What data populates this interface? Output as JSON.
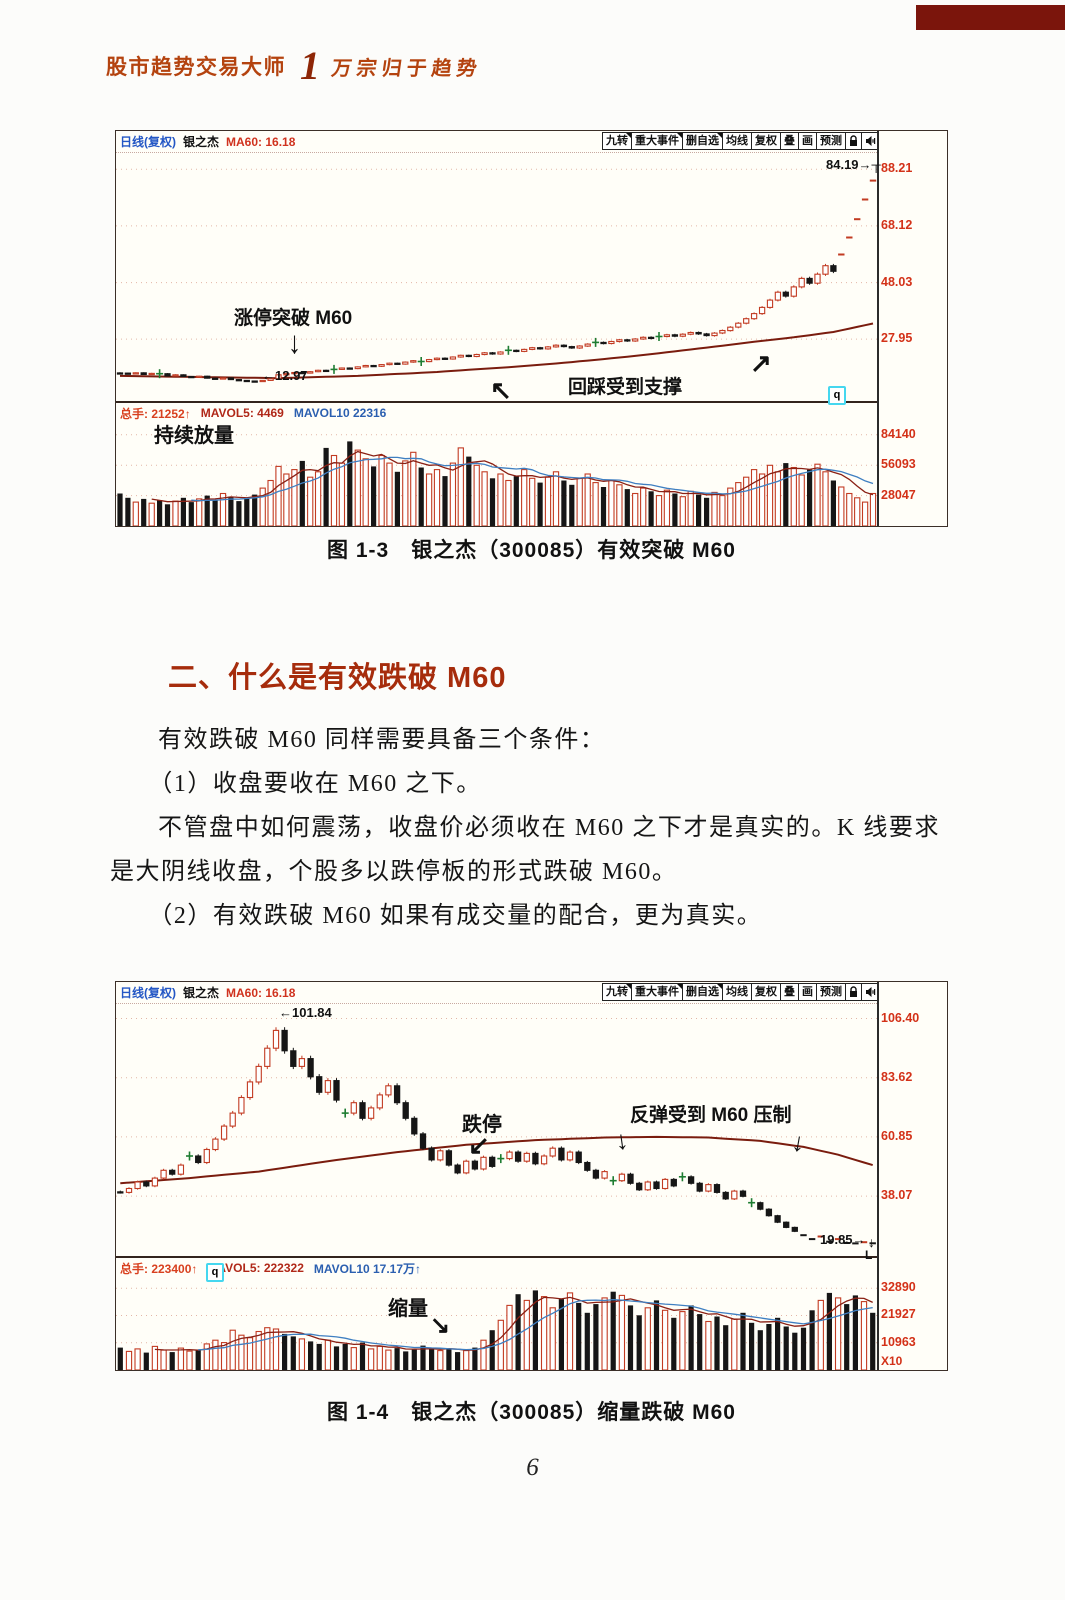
{
  "page": {
    "header_title": "股市趋势交易大师",
    "header_volume_no": "1",
    "header_subtitle": "万宗归于趋势",
    "page_number": "6"
  },
  "colors": {
    "candle_up": "#c23b22",
    "candle_down": "#161616",
    "doji_green": "#1e7d32",
    "m60_line": "#7a1c0e",
    "mavol5_line": "#8a2014",
    "mavol10_line": "#3f7fc1",
    "axis_label_red": "#d33118",
    "grid_dotted": "#e2b6a6",
    "heading_red": "#a62c0c",
    "header_band": "#b4430f",
    "top_bar_red": "#7b150c"
  },
  "chart_toolbar": {
    "items": [
      {
        "label": "九转",
        "notch": true
      },
      {
        "label": "重大事件",
        "notch": true
      },
      {
        "label": "删自选",
        "notch": true
      },
      {
        "label": "均线",
        "notch": false
      },
      {
        "label": "复权",
        "notch": false
      },
      {
        "label": "叠",
        "notch": false
      },
      {
        "label": "画",
        "notch": false
      },
      {
        "label": "预测",
        "notch": false
      }
    ]
  },
  "section": {
    "heading": "二、什么是有效跌破 M60",
    "paragraphs": [
      "有效跌破 M60 同样需要具备三个条件：",
      "（1）收盘要收在 M60 之下。",
      "不管盘中如何震荡，收盘价必须收在 M60 之下才是真实的。K 线要求是大阴线收盘，个股多以跌停板的形式跌破 M60。",
      "（2）有效跌破 M60 如果有成交量的配合，更为真实。"
    ]
  },
  "figure1": {
    "caption": "图 1-3　银之杰（300085）有效突破 M60",
    "header": {
      "period": "日线(复权)",
      "stock": "银之杰",
      "ma": "MA60: 16.18"
    },
    "price_axis": [
      "88.21",
      "68.12",
      "48.03",
      "27.95"
    ],
    "volume_axis": [
      "84140",
      "56093",
      "28047"
    ],
    "volume_header": [
      {
        "text": "总手: 21252↑",
        "color": "#d8401f"
      },
      {
        "text": "MAVOL5: 4469",
        "color": "#b02818"
      },
      {
        "text": "MAVOL10  22316",
        "color": "#2b5fb0"
      }
    ],
    "annotations": {
      "limit_up_text": "涨停突破 M60",
      "limit_up_arrow": "↓",
      "low_arrow": "←",
      "low_label": "12.97",
      "support_text": "回踩受到支撑",
      "support_arrow1": "↖",
      "support_arrow2": "↗",
      "high_label": "84.19",
      "high_marker": "→┬",
      "volume_note": "持续放量",
      "q_badge": "q"
    },
    "chart_data": {
      "type": "candlestick",
      "price": {
        "ylim": [
          6,
          94
        ],
        "gridlines": [
          88.21,
          68.12,
          48.03,
          27.95
        ],
        "dash_from": 91,
        "dojis": [
          5,
          27,
          38,
          49,
          60,
          68
        ],
        "m60_points": [
          [
            0,
            14.9
          ],
          [
            10,
            14.5
          ],
          [
            20,
            14.1
          ],
          [
            30,
            14.9
          ],
          [
            40,
            16.3
          ],
          [
            50,
            18.2
          ],
          [
            55,
            19.3
          ],
          [
            60,
            20.6
          ],
          [
            65,
            22.0
          ],
          [
            70,
            23.6
          ],
          [
            75,
            25.3
          ],
          [
            80,
            27.0
          ],
          [
            85,
            28.6
          ],
          [
            90,
            30.5
          ],
          [
            95,
            33.5
          ]
        ],
        "closes": [
          15.9,
          15.6,
          16.0,
          15.4,
          15.8,
          15.7,
          14.9,
          15.3,
          14.7,
          14.4,
          14.8,
          14.1,
          13.8,
          14.2,
          13.6,
          13.3,
          13.1,
          12.97,
          13.3,
          13.9,
          15.3,
          15.7,
          16.1,
          15.9,
          16.4,
          16.9,
          16.6,
          17.2,
          17.7,
          17.5,
          18.1,
          18.6,
          18.3,
          18.9,
          19.4,
          19.1,
          19.8,
          20.3,
          20.0,
          20.7,
          21.2,
          20.9,
          21.6,
          22.2,
          21.8,
          22.5,
          23.1,
          22.7,
          23.4,
          24.0,
          23.6,
          24.3,
          24.9,
          24.5,
          25.2,
          25.8,
          25.3,
          24.8,
          25.5,
          26.2,
          26.8,
          26.4,
          27.1,
          27.7,
          27.3,
          28.0,
          28.6,
          28.2,
          28.9,
          29.5,
          29.0,
          29.7,
          30.3,
          29.8,
          29.2,
          30.1,
          31.0,
          32.2,
          33.6,
          35.2,
          37.0,
          39.2,
          41.8,
          44.6,
          43.2,
          46.5,
          49.5,
          47.8,
          51.0,
          54.0,
          52.0,
          58.0,
          64.0,
          70.5,
          77.5,
          84.19
        ]
      },
      "volume": {
        "ylim": [
          0,
          95000
        ],
        "gridlines": [
          84140,
          56093,
          28047
        ],
        "values": [
          30000,
          26000,
          22000,
          25000,
          21000,
          24000,
          20000,
          23000,
          26000,
          22000,
          25000,
          28000,
          24000,
          30000,
          27000,
          23000,
          26000,
          29000,
          35000,
          42000,
          55000,
          48000,
          52000,
          60000,
          45000,
          50000,
          72000,
          65000,
          58000,
          78000,
          70000,
          62000,
          55000,
          65000,
          58000,
          50000,
          60000,
          68000,
          54000,
          48000,
          52000,
          46000,
          58000,
          72000,
          64000,
          56000,
          50000,
          44000,
          48000,
          42000,
          46000,
          52000,
          44000,
          40000,
          45000,
          50000,
          42000,
          38000,
          44000,
          48000,
          40000,
          36000,
          42000,
          38000,
          34000,
          30000,
          35000,
          32000,
          28000,
          33000,
          30000,
          27000,
          32000,
          29000,
          26000,
          31000,
          28000,
          35000,
          40000,
          45000,
          52000,
          48000,
          56000,
          50000,
          58000,
          54000,
          47000,
          52000,
          57000,
          50000,
          42000,
          36000,
          30000,
          26000,
          22000,
          30000
        ]
      }
    }
  },
  "figure2": {
    "caption": "图 1-4　银之杰（300085）缩量跌破 M60",
    "header": {
      "period": "日线(复权)",
      "stock": "银之杰",
      "ma": "MA60: 16.18"
    },
    "price_axis": [
      "106.40",
      "83.62",
      "60.85",
      "38.07"
    ],
    "volume_axis": [
      "32890",
      "21927",
      "10963"
    ],
    "volume_axis_unit": "X10",
    "volume_header": [
      {
        "text": "总手: 223400↑",
        "color": "#d8401f"
      },
      {
        "text": "MAVOL5: 222322",
        "color": "#b02818"
      },
      {
        "text": "MAVOL10  17.17万↑",
        "color": "#2b5fb0"
      }
    ],
    "annotations": {
      "peak_arrow": "←",
      "peak_label": "101.84",
      "limit_down_text": "跌停",
      "limit_down_arrow": "↙",
      "rebound_text": "反弹受到 M60 压制",
      "rebound_arrow1": "↓",
      "rebound_arrow2": "↓",
      "low_label": "19.85",
      "low_marker": "→",
      "low_arrow": "↓",
      "low_flag": "L",
      "shrink_text": "缩量",
      "shrink_arrow": "↘",
      "q_badge": "q"
    },
    "chart_data": {
      "type": "candlestick",
      "price": {
        "ylim": [
          15,
          112
        ],
        "gridlines": [
          106.4,
          83.62,
          60.85,
          38.07
        ],
        "dash_from": 79,
        "dojis": [
          8,
          26,
          44,
          57,
          65,
          73
        ],
        "m60_points": [
          [
            0,
            43.0
          ],
          [
            8,
            45.0
          ],
          [
            16,
            47.5
          ],
          [
            24,
            51.5
          ],
          [
            32,
            55.0
          ],
          [
            40,
            57.8
          ],
          [
            48,
            59.6
          ],
          [
            56,
            60.6
          ],
          [
            62,
            60.85
          ],
          [
            68,
            60.6
          ],
          [
            74,
            59.3
          ],
          [
            79,
            57.0
          ],
          [
            83,
            54.0
          ],
          [
            87,
            50.0
          ]
        ],
        "closes": [
          39.5,
          41.0,
          43.5,
          42.0,
          45.0,
          48.0,
          46.5,
          50.0,
          53.5,
          51.0,
          56.0,
          60.0,
          65.0,
          70.0,
          76.0,
          82.0,
          88.0,
          95.0,
          101.84,
          94.0,
          88.0,
          91.0,
          84.0,
          78.0,
          82.5,
          75.0,
          70.0,
          74.0,
          68.0,
          72.0,
          77.0,
          80.5,
          74.0,
          68.0,
          62.0,
          56.5,
          52.0,
          55.5,
          50.0,
          47.0,
          51.5,
          48.5,
          53.0,
          49.5,
          52.5,
          55.0,
          51.5,
          54.5,
          50.5,
          53.5,
          56.5,
          52.0,
          55.0,
          51.0,
          48.0,
          45.0,
          47.5,
          44.0,
          46.5,
          43.0,
          40.5,
          43.5,
          41.0,
          44.5,
          42.0,
          45.5,
          43.0,
          40.0,
          42.5,
          39.5,
          37.0,
          40.0,
          38.0,
          35.5,
          33.0,
          30.5,
          28.0,
          26.0,
          24.5,
          23.0,
          21.5,
          22.5,
          20.5,
          21.5,
          20.0,
          19.85,
          20.3,
          19.9
        ]
      },
      "volume": {
        "ylim": [
          0,
          37000
        ],
        "gridlines": [
          32890,
          21927,
          10963
        ],
        "values": [
          9000,
          7500,
          8500,
          7000,
          9500,
          8000,
          7200,
          8800,
          7600,
          8200,
          10500,
          12000,
          11000,
          16000,
          14000,
          13000,
          15500,
          17000,
          16500,
          14500,
          13500,
          12500,
          11500,
          10500,
          12000,
          9500,
          10500,
          9000,
          11000,
          8500,
          9500,
          8000,
          8800,
          7500,
          8200,
          9800,
          8600,
          7800,
          8400,
          7200,
          7800,
          9000,
          12000,
          16000,
          20000,
          26000,
          30500,
          28000,
          32000,
          29500,
          25000,
          28500,
          31000,
          27000,
          23000,
          26500,
          29000,
          31500,
          30000,
          26000,
          22000,
          25000,
          28000,
          24000,
          21000,
          23500,
          26000,
          22500,
          19500,
          21500,
          18000,
          20500,
          23000,
          19000,
          16000,
          18500,
          21000,
          17500,
          15000,
          17000,
          24000,
          28000,
          31000,
          29000,
          26500,
          30000,
          27500,
          23000
        ]
      }
    }
  }
}
